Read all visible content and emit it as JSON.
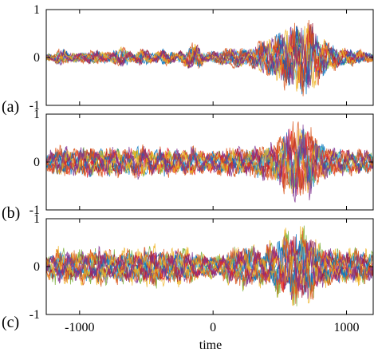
{
  "chart_data": {
    "type": "line",
    "xlabel": "time",
    "xlim": [
      -1250,
      1200
    ],
    "xticks": [
      {
        "value": -1000,
        "label": "-1000"
      },
      {
        "value": 0,
        "label": "0"
      },
      {
        "value": 1000,
        "label": "1000"
      }
    ],
    "series_colors": [
      "#0072bd",
      "#d95319",
      "#edb120",
      "#7e2f8e",
      "#77ac30",
      "#4dbeee",
      "#a2142f",
      "#e8222a"
    ],
    "series_count": 12,
    "panels": [
      {
        "label": "(a)",
        "ylim": [
          -1,
          1
        ],
        "yticks": [
          {
            "value": 1,
            "label": "1"
          },
          {
            "value": 0,
            "label": "0"
          },
          {
            "value": -1,
            "label": "-1"
          }
        ],
        "envelope": [
          {
            "t": -1250,
            "a": 0.08
          },
          {
            "t": -1200,
            "a": 0.1
          },
          {
            "t": -1130,
            "a": 0.25
          },
          {
            "t": -1080,
            "a": 0.12
          },
          {
            "t": -990,
            "a": 0.12
          },
          {
            "t": -870,
            "a": 0.18
          },
          {
            "t": -780,
            "a": 0.12
          },
          {
            "t": -680,
            "a": 0.26
          },
          {
            "t": -600,
            "a": 0.12
          },
          {
            "t": -530,
            "a": 0.22
          },
          {
            "t": -440,
            "a": 0.12
          },
          {
            "t": -370,
            "a": 0.2
          },
          {
            "t": -270,
            "a": 0.12
          },
          {
            "t": -130,
            "a": 0.35
          },
          {
            "t": -60,
            "a": 0.12
          },
          {
            "t": 60,
            "a": 0.18
          },
          {
            "t": 170,
            "a": 0.26
          },
          {
            "t": 270,
            "a": 0.2
          },
          {
            "t": 340,
            "a": 0.35
          },
          {
            "t": 430,
            "a": 0.5
          },
          {
            "t": 520,
            "a": 0.65
          },
          {
            "t": 580,
            "a": 0.78
          },
          {
            "t": 640,
            "a": 0.85
          },
          {
            "t": 730,
            "a": 0.92
          },
          {
            "t": 800,
            "a": 0.55
          },
          {
            "t": 870,
            "a": 0.35
          },
          {
            "t": 960,
            "a": 0.22
          },
          {
            "t": 1040,
            "a": 0.2
          },
          {
            "t": 1120,
            "a": 0.16
          },
          {
            "t": 1200,
            "a": 0.1
          }
        ]
      },
      {
        "label": "(b)",
        "ylim": [
          -1,
          1
        ],
        "yticks": [
          {
            "value": 1,
            "label": "1"
          },
          {
            "value": 0,
            "label": "0"
          },
          {
            "value": -1,
            "label": "-1"
          }
        ],
        "envelope": [
          {
            "t": -1250,
            "a": 0.2
          },
          {
            "t": -1150,
            "a": 0.38
          },
          {
            "t": -1050,
            "a": 0.3
          },
          {
            "t": -950,
            "a": 0.4
          },
          {
            "t": -850,
            "a": 0.32
          },
          {
            "t": -750,
            "a": 0.38
          },
          {
            "t": -650,
            "a": 0.3
          },
          {
            "t": -550,
            "a": 0.4
          },
          {
            "t": -450,
            "a": 0.3
          },
          {
            "t": -350,
            "a": 0.36
          },
          {
            "t": -250,
            "a": 0.28
          },
          {
            "t": -150,
            "a": 0.35
          },
          {
            "t": -50,
            "a": 0.25
          },
          {
            "t": 50,
            "a": 0.3
          },
          {
            "t": 150,
            "a": 0.36
          },
          {
            "t": 250,
            "a": 0.3
          },
          {
            "t": 350,
            "a": 0.38
          },
          {
            "t": 450,
            "a": 0.45
          },
          {
            "t": 540,
            "a": 0.72
          },
          {
            "t": 620,
            "a": 0.92
          },
          {
            "t": 720,
            "a": 0.85
          },
          {
            "t": 800,
            "a": 0.5
          },
          {
            "t": 900,
            "a": 0.3
          },
          {
            "t": 1000,
            "a": 0.32
          },
          {
            "t": 1100,
            "a": 0.3
          },
          {
            "t": 1200,
            "a": 0.25
          }
        ]
      },
      {
        "label": "(c)",
        "ylim": [
          -1,
          1
        ],
        "yticks": [
          {
            "value": 1,
            "label": "1"
          },
          {
            "value": 0,
            "label": "0"
          },
          {
            "value": -1,
            "label": "-1"
          }
        ],
        "envelope": [
          {
            "t": -1250,
            "a": 0.3
          },
          {
            "t": -1150,
            "a": 0.45
          },
          {
            "t": -1050,
            "a": 0.38
          },
          {
            "t": -950,
            "a": 0.4
          },
          {
            "t": -850,
            "a": 0.48
          },
          {
            "t": -750,
            "a": 0.38
          },
          {
            "t": -650,
            "a": 0.45
          },
          {
            "t": -550,
            "a": 0.4
          },
          {
            "t": -450,
            "a": 0.5
          },
          {
            "t": -350,
            "a": 0.4
          },
          {
            "t": -250,
            "a": 0.45
          },
          {
            "t": -150,
            "a": 0.38
          },
          {
            "t": -50,
            "a": 0.3
          },
          {
            "t": 50,
            "a": 0.28
          },
          {
            "t": 150,
            "a": 0.45
          },
          {
            "t": 250,
            "a": 0.55
          },
          {
            "t": 350,
            "a": 0.45
          },
          {
            "t": 450,
            "a": 0.62
          },
          {
            "t": 540,
            "a": 0.82
          },
          {
            "t": 630,
            "a": 0.95
          },
          {
            "t": 720,
            "a": 0.85
          },
          {
            "t": 800,
            "a": 0.55
          },
          {
            "t": 900,
            "a": 0.45
          },
          {
            "t": 1000,
            "a": 0.4
          },
          {
            "t": 1100,
            "a": 0.42
          },
          {
            "t": 1200,
            "a": 0.35
          }
        ]
      }
    ]
  }
}
